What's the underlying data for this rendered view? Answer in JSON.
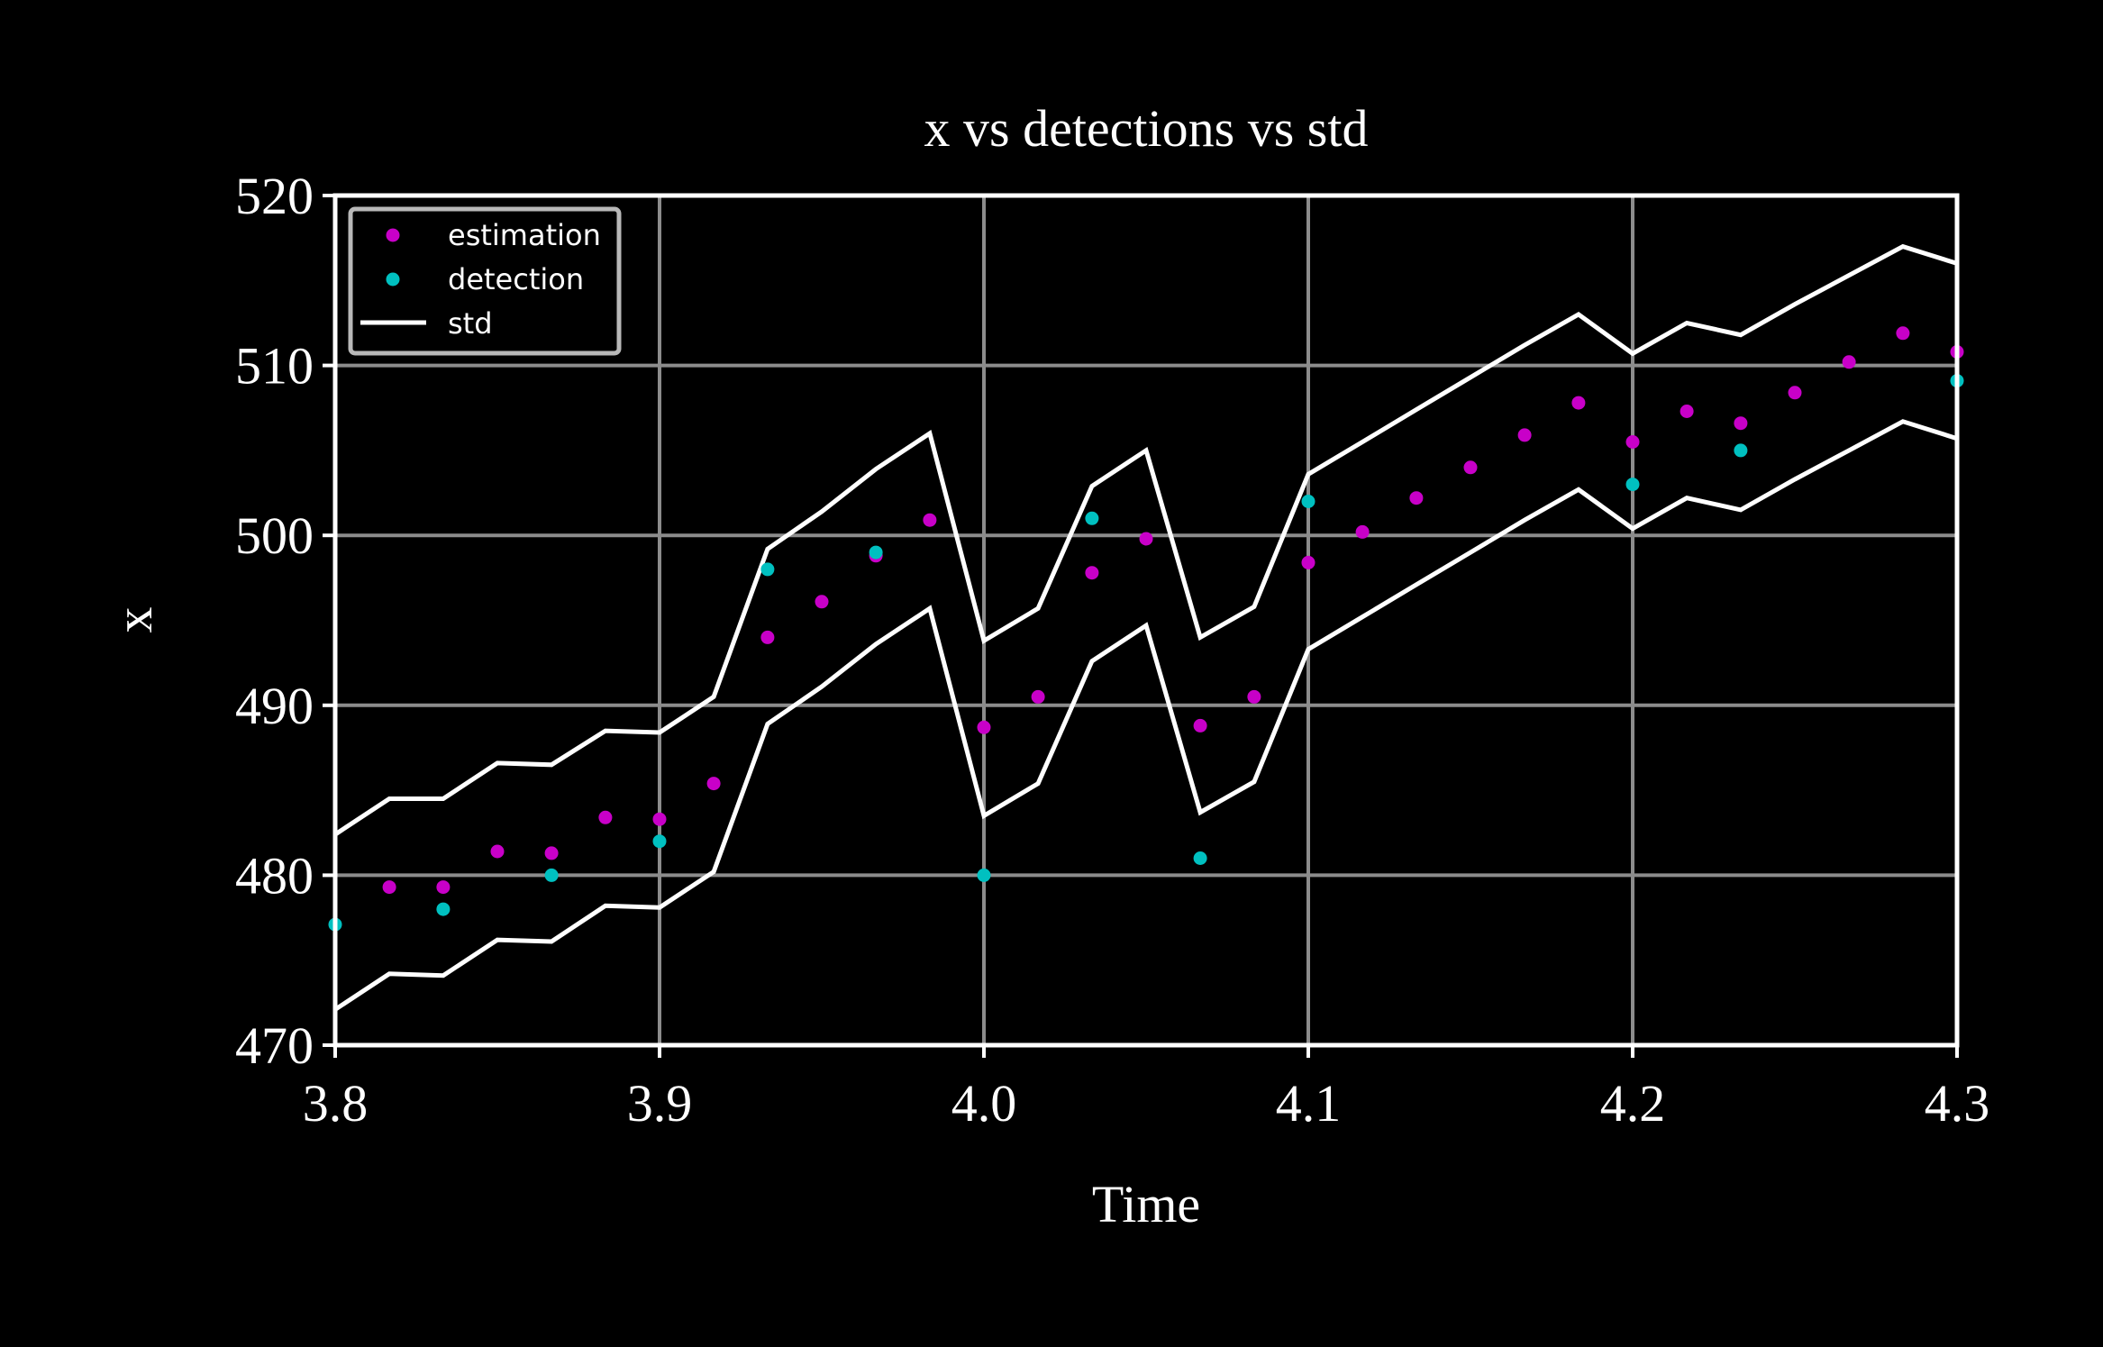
{
  "chart_data": {
    "type": "scatter",
    "title": "x vs detections vs std",
    "xlabel": "Time",
    "ylabel": "x",
    "xlim": [
      3.8,
      4.3
    ],
    "ylim": [
      470,
      520
    ],
    "xticks": [
      "3.8",
      "3.9",
      "4.0",
      "4.1",
      "4.2",
      "4.3"
    ],
    "yticks": [
      "470",
      "480",
      "490",
      "500",
      "510",
      "520"
    ],
    "grid": true,
    "legend_position": "top-left",
    "background_color": "#000000",
    "series": [
      {
        "name": "estimation",
        "kind": "points",
        "color": "#c800c8",
        "points": [
          [
            3.8167,
            479.3
          ],
          [
            3.8333,
            479.3
          ],
          [
            3.85,
            481.4
          ],
          [
            3.8667,
            481.3
          ],
          [
            3.8833,
            483.4
          ],
          [
            3.9,
            483.3
          ],
          [
            3.9167,
            485.4
          ],
          [
            3.9333,
            494.0
          ],
          [
            3.95,
            496.1
          ],
          [
            3.9667,
            498.8
          ],
          [
            3.9833,
            500.9
          ],
          [
            4.0,
            488.7
          ],
          [
            4.0167,
            490.5
          ],
          [
            4.0333,
            497.8
          ],
          [
            4.05,
            499.8
          ],
          [
            4.0667,
            488.8
          ],
          [
            4.0833,
            490.5
          ],
          [
            4.1,
            498.4
          ],
          [
            4.1167,
            500.2
          ],
          [
            4.1333,
            502.2
          ],
          [
            4.15,
            504.0
          ],
          [
            4.1667,
            505.9
          ],
          [
            4.1833,
            507.8
          ],
          [
            4.2,
            505.5
          ],
          [
            4.2167,
            507.3
          ],
          [
            4.2333,
            506.6
          ],
          [
            4.25,
            508.4
          ],
          [
            4.2667,
            510.2
          ],
          [
            4.2833,
            511.9
          ],
          [
            4.3,
            510.8
          ]
        ]
      },
      {
        "name": "detection",
        "kind": "points",
        "color": "#00c0c0",
        "points": [
          [
            3.8,
            477.1
          ],
          [
            3.8333,
            478.0
          ],
          [
            3.8667,
            480.0
          ],
          [
            3.9,
            482.0
          ],
          [
            3.9333,
            498.0
          ],
          [
            3.9667,
            499.0
          ],
          [
            4.0,
            480.0
          ],
          [
            4.0333,
            501.0
          ],
          [
            4.0667,
            481.0
          ],
          [
            4.1,
            502.0
          ],
          [
            4.2,
            503.0
          ],
          [
            4.2333,
            505.0
          ],
          [
            4.3,
            509.1
          ]
        ]
      },
      {
        "name": "std",
        "kind": "line",
        "color": "#ffffff",
        "lines": [
          [
            [
              3.8,
              482.4
            ],
            [
              3.8167,
              484.5
            ],
            [
              3.8333,
              484.5
            ],
            [
              3.85,
              486.6
            ],
            [
              3.8667,
              486.5
            ],
            [
              3.8833,
              488.5
            ],
            [
              3.9,
              488.4
            ],
            [
              3.9167,
              490.5
            ],
            [
              3.9333,
              499.2
            ],
            [
              3.95,
              501.4
            ],
            [
              3.9667,
              503.9
            ],
            [
              3.9833,
              506.0
            ],
            [
              4.0,
              493.8
            ],
            [
              4.0167,
              495.7
            ],
            [
              4.0333,
              502.9
            ],
            [
              4.05,
              505.0
            ],
            [
              4.0667,
              494.0
            ],
            [
              4.0833,
              495.8
            ],
            [
              4.1,
              503.6
            ],
            [
              4.1167,
              505.5
            ],
            [
              4.1333,
              507.4
            ],
            [
              4.15,
              509.3
            ],
            [
              4.1667,
              511.2
            ],
            [
              4.1833,
              513.0
            ],
            [
              4.2,
              510.7
            ],
            [
              4.2167,
              512.5
            ],
            [
              4.2333,
              511.8
            ],
            [
              4.25,
              513.6
            ],
            [
              4.2667,
              515.3
            ],
            [
              4.2833,
              517.0
            ],
            [
              4.3,
              516.0
            ]
          ],
          [
            [
              3.8,
              472.1
            ],
            [
              3.8167,
              474.2
            ],
            [
              3.8333,
              474.1
            ],
            [
              3.85,
              476.2
            ],
            [
              3.8667,
              476.1
            ],
            [
              3.8833,
              478.2
            ],
            [
              3.9,
              478.1
            ],
            [
              3.9167,
              480.2
            ],
            [
              3.9333,
              488.9
            ],
            [
              3.95,
              491.1
            ],
            [
              3.9667,
              493.6
            ],
            [
              3.9833,
              495.7
            ],
            [
              4.0,
              483.5
            ],
            [
              4.0167,
              485.4
            ],
            [
              4.0333,
              492.6
            ],
            [
              4.05,
              494.7
            ],
            [
              4.0667,
              483.7
            ],
            [
              4.0833,
              485.5
            ],
            [
              4.1,
              493.3
            ],
            [
              4.1167,
              495.2
            ],
            [
              4.1333,
              497.1
            ],
            [
              4.15,
              499.0
            ],
            [
              4.1667,
              500.9
            ],
            [
              4.1833,
              502.7
            ],
            [
              4.2,
              500.4
            ],
            [
              4.2167,
              502.2
            ],
            [
              4.2333,
              501.5
            ],
            [
              4.25,
              503.3
            ],
            [
              4.2667,
              505.0
            ],
            [
              4.2833,
              506.7
            ],
            [
              4.3,
              505.7
            ]
          ]
        ]
      }
    ]
  }
}
